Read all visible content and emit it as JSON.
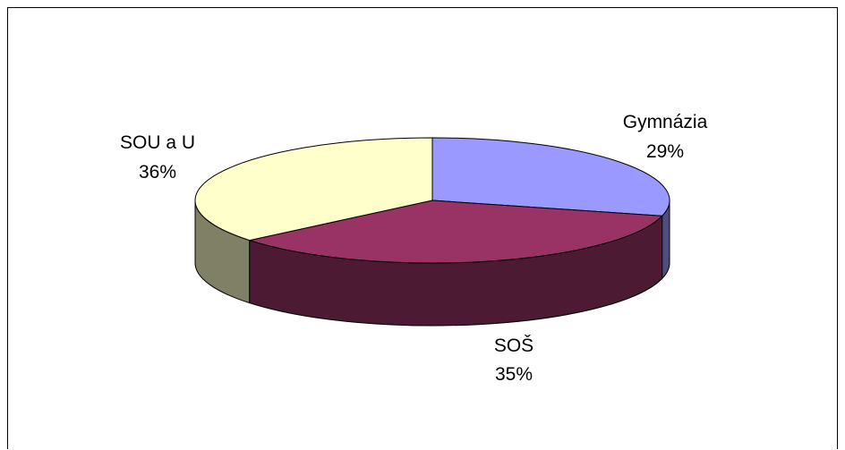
{
  "chart_data": {
    "type": "pie",
    "variant": "3d",
    "title": "",
    "categories": [
      "Gymnázia",
      "SOŠ",
      "SOU a U"
    ],
    "values": [
      29,
      35,
      36
    ],
    "labels": [
      {
        "name": "Gymnázia",
        "pct": "29%"
      },
      {
        "name": "SOŠ",
        "pct": "35%"
      },
      {
        "name": "SOU a U",
        "pct": "36%"
      }
    ],
    "colors": {
      "top": [
        "#9999ff",
        "#993366",
        "#ffffcc"
      ],
      "side": [
        "#4d4d80",
        "#4d1a33",
        "#808066"
      ]
    },
    "legend": "none",
    "start_angle_deg": 90,
    "direction": "clockwise"
  }
}
